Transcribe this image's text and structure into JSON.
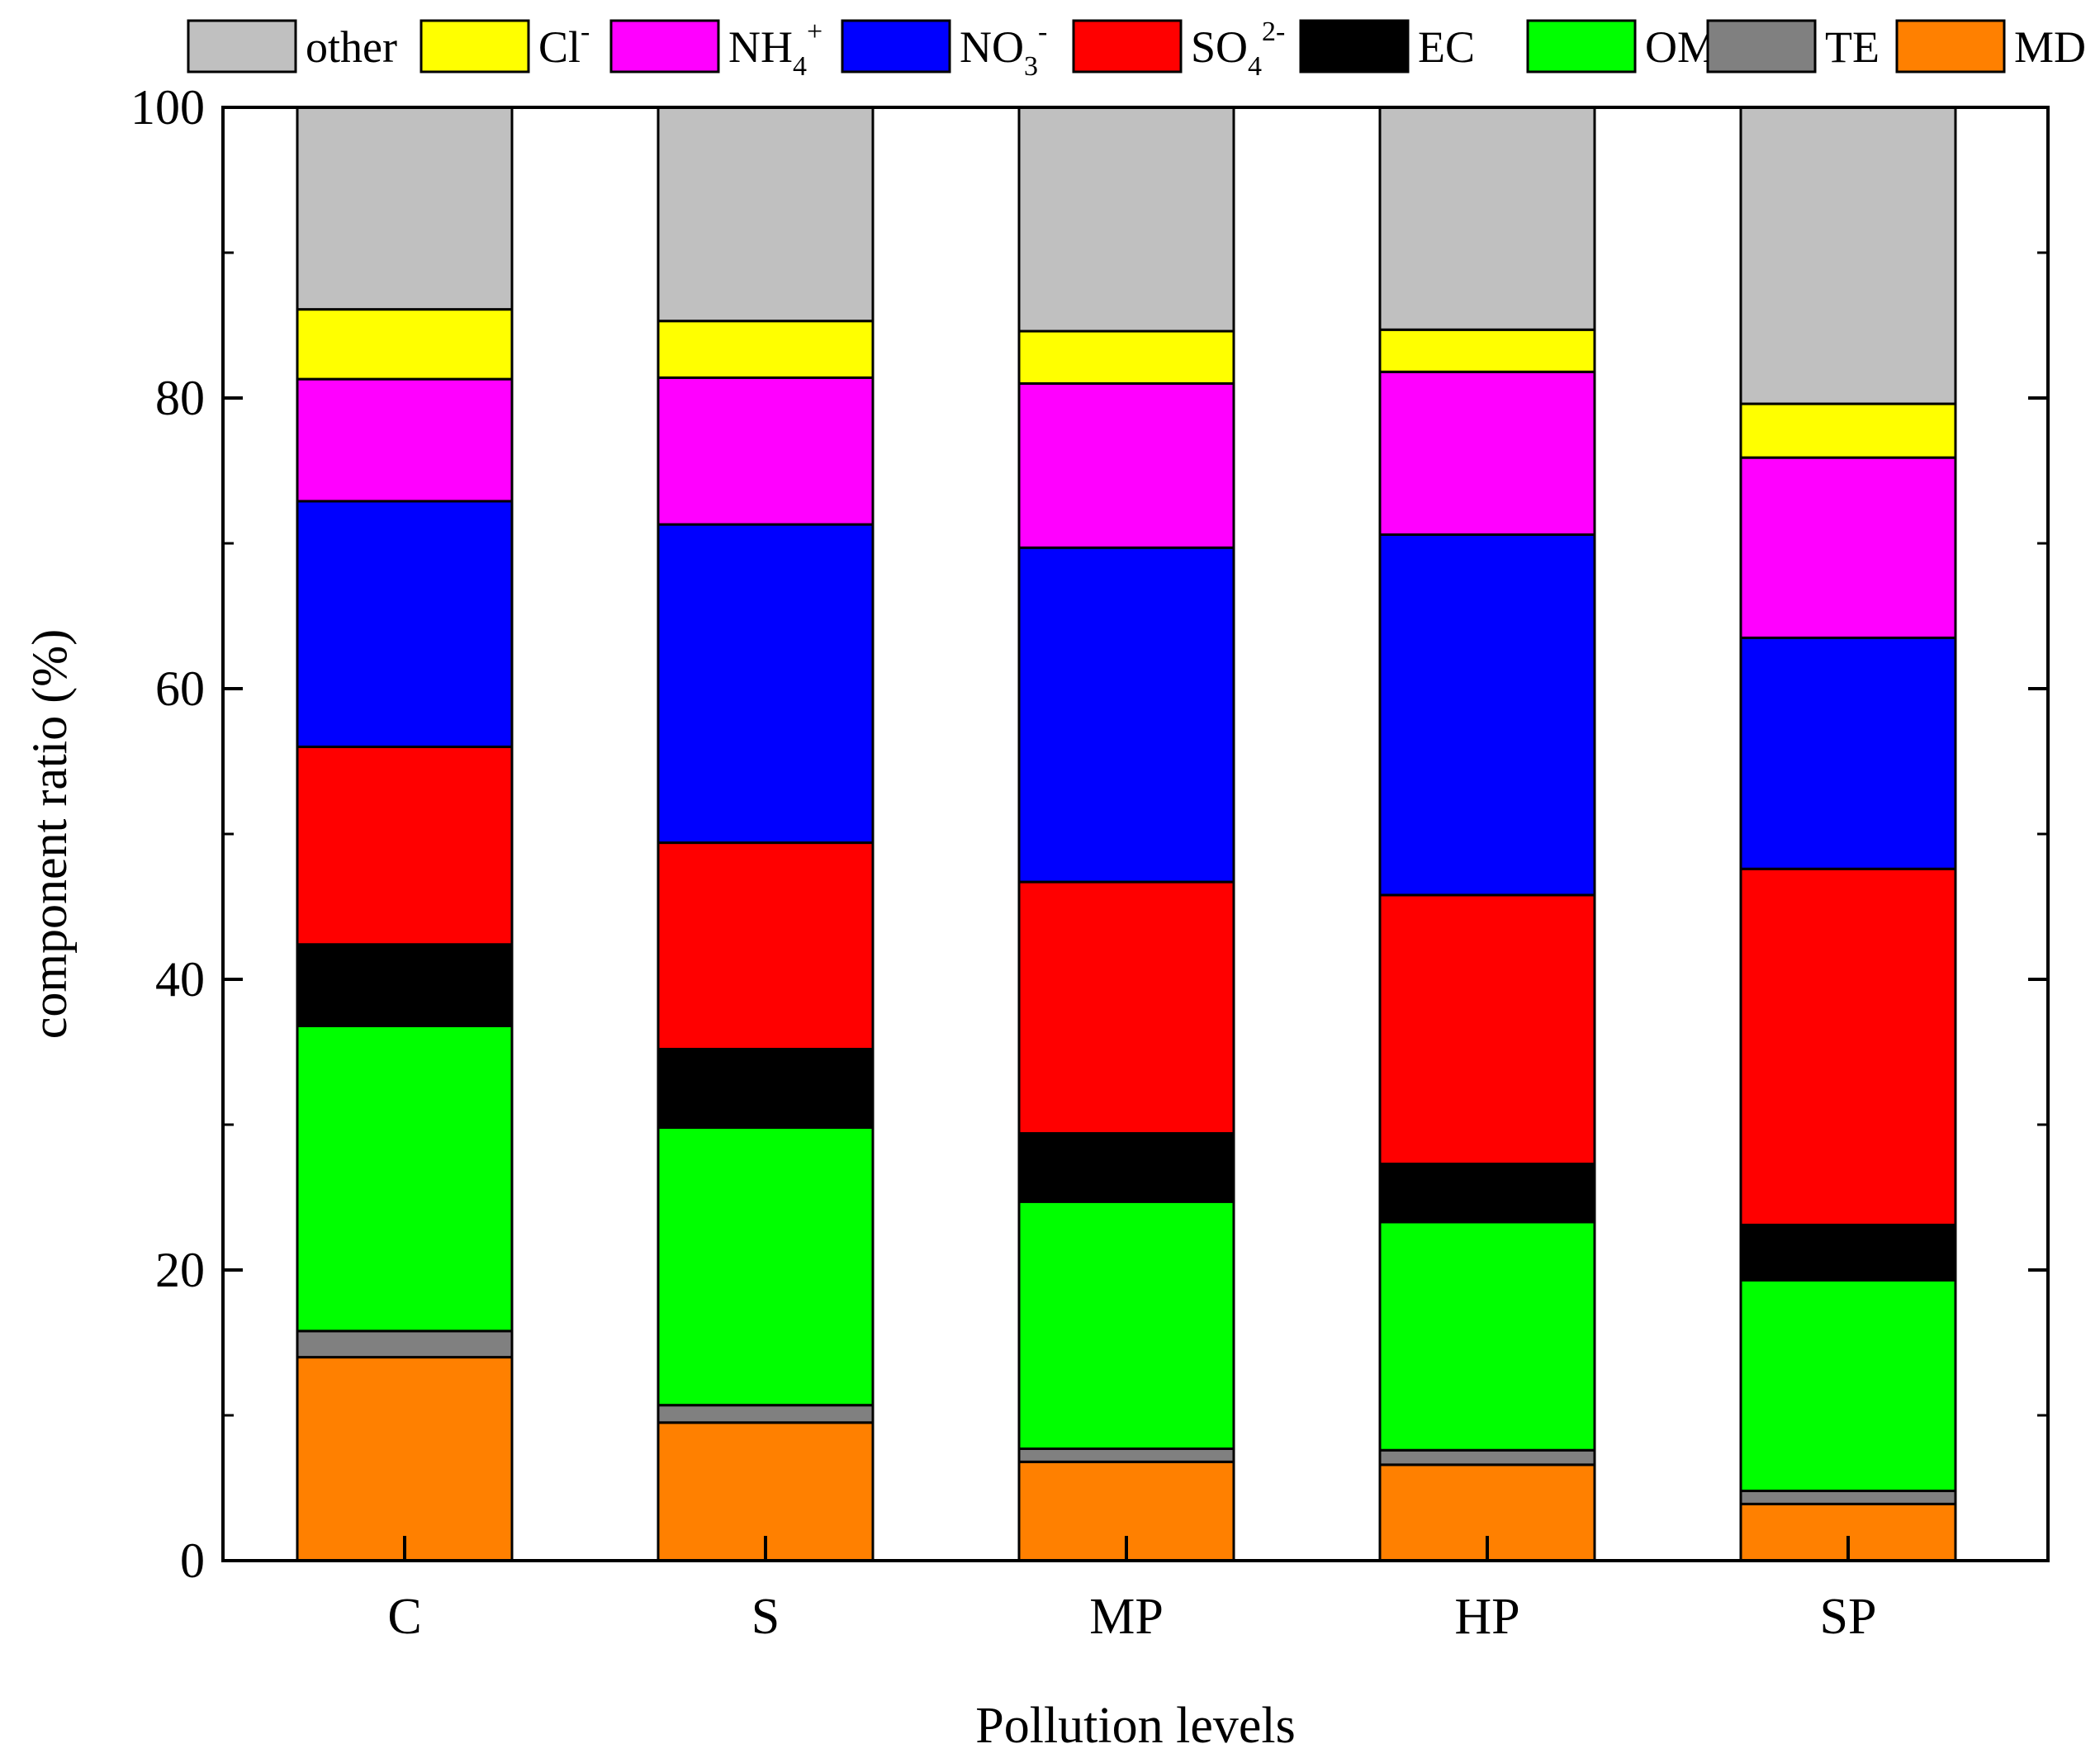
{
  "chart_data": {
    "type": "stacked-bar",
    "title": "",
    "xlabel": "Pollution levels",
    "ylabel": "component ratio (%)",
    "ylim": [
      0,
      100
    ],
    "yticks": [
      0,
      20,
      40,
      60,
      80,
      100
    ],
    "ytick_labels": [
      "0",
      "20",
      "40",
      "60",
      "80",
      "100"
    ],
    "categories": [
      "C",
      "S",
      "MP",
      "HP",
      "SP"
    ],
    "legend_position": "top",
    "series": [
      {
        "name": "MD",
        "sup": "",
        "sub": "",
        "color": "#ff8000",
        "values": [
          14.0,
          9.5,
          6.8,
          6.6,
          3.9
        ]
      },
      {
        "name": "TE",
        "sup": "",
        "sub": "",
        "color": "#808080",
        "values": [
          1.8,
          1.2,
          0.9,
          1.0,
          0.9
        ]
      },
      {
        "name": "OM",
        "sup": "",
        "sub": "",
        "color": "#00ff00",
        "values": [
          21.0,
          19.1,
          17.0,
          15.7,
          14.5
        ]
      },
      {
        "name": "EC",
        "sup": "",
        "sub": "",
        "color": "#000000",
        "values": [
          5.6,
          5.4,
          4.7,
          4.0,
          3.8
        ]
      },
      {
        "name": "SO",
        "sup": "2-",
        "sub": "4",
        "color": "#ff0000",
        "values": [
          13.6,
          14.2,
          17.3,
          18.5,
          24.5
        ]
      },
      {
        "name": "NO",
        "sup": "-",
        "sub": "3",
        "color": "#0000ff",
        "values": [
          16.9,
          21.9,
          23.0,
          24.8,
          15.9
        ]
      },
      {
        "name": "NH",
        "sup": "+",
        "sub": "4",
        "color": "#ff00ff",
        "values": [
          8.4,
          10.1,
          11.3,
          11.2,
          12.4
        ]
      },
      {
        "name": "Cl",
        "sup": "-",
        "sub": "",
        "color": "#ffff00",
        "values": [
          4.8,
          3.9,
          3.6,
          2.9,
          3.7
        ]
      },
      {
        "name": "other",
        "sup": "",
        "sub": "",
        "color": "#c0c0c0",
        "values": [
          13.9,
          14.7,
          15.4,
          15.3,
          20.4
        ]
      }
    ],
    "legend_order": [
      "other",
      "Cl",
      "NH",
      "NO",
      "SO",
      "EC",
      "OM",
      "TE",
      "MD"
    ]
  }
}
